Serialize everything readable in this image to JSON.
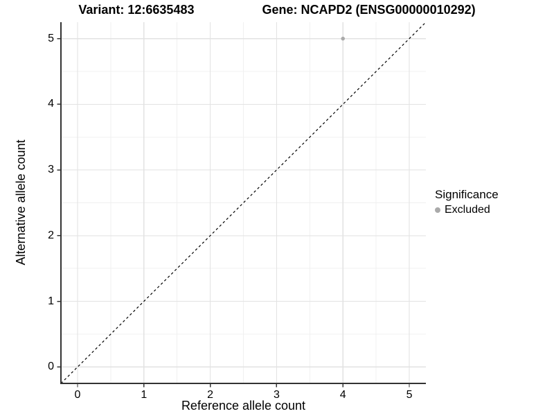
{
  "header": {
    "variant_title": "Variant: 12:6635483",
    "gene_title": "Gene: NCAPD2 (ENSG00000010292)"
  },
  "chart_data": {
    "type": "scatter",
    "title": "Variant: 12:6635483    Gene: NCAPD2 (ENSG00000010292)",
    "xlabel": "Reference allele count",
    "ylabel": "Alternative allele count",
    "xlim": [
      -0.25,
      5.25
    ],
    "ylim": [
      -0.25,
      5.25
    ],
    "x_ticks": [
      0,
      1,
      2,
      3,
      4,
      5
    ],
    "y_ticks": [
      0,
      1,
      2,
      3,
      4,
      5
    ],
    "x_minor_ticks": [
      0.5,
      1.5,
      2.5,
      3.5,
      4.5
    ],
    "y_minor_ticks": [
      0.5,
      1.5,
      2.5,
      3.5,
      4.5
    ],
    "grid": "major+minor",
    "legend_position": "right",
    "series": [
      {
        "name": "Excluded",
        "marker": "circle",
        "color": "#aaaaaa",
        "points": [
          {
            "x": 4,
            "y": 5
          }
        ]
      }
    ],
    "reference_line": {
      "kind": "identity",
      "from": [
        -0.25,
        -0.25
      ],
      "to": [
        5.25,
        5.25
      ],
      "style": "dashed",
      "color": "#000000"
    }
  },
  "legend": {
    "title": "Significance",
    "entries": [
      {
        "label": "Excluded",
        "color": "#aaaaaa"
      }
    ]
  },
  "colors": {
    "background": "#ffffff",
    "axis_line": "#333333",
    "tick_mark": "#333333",
    "grid_major": "#e2e2e2",
    "grid_minor": "#f0f0f0",
    "text": "#000000",
    "point": "#aaaaaa"
  }
}
